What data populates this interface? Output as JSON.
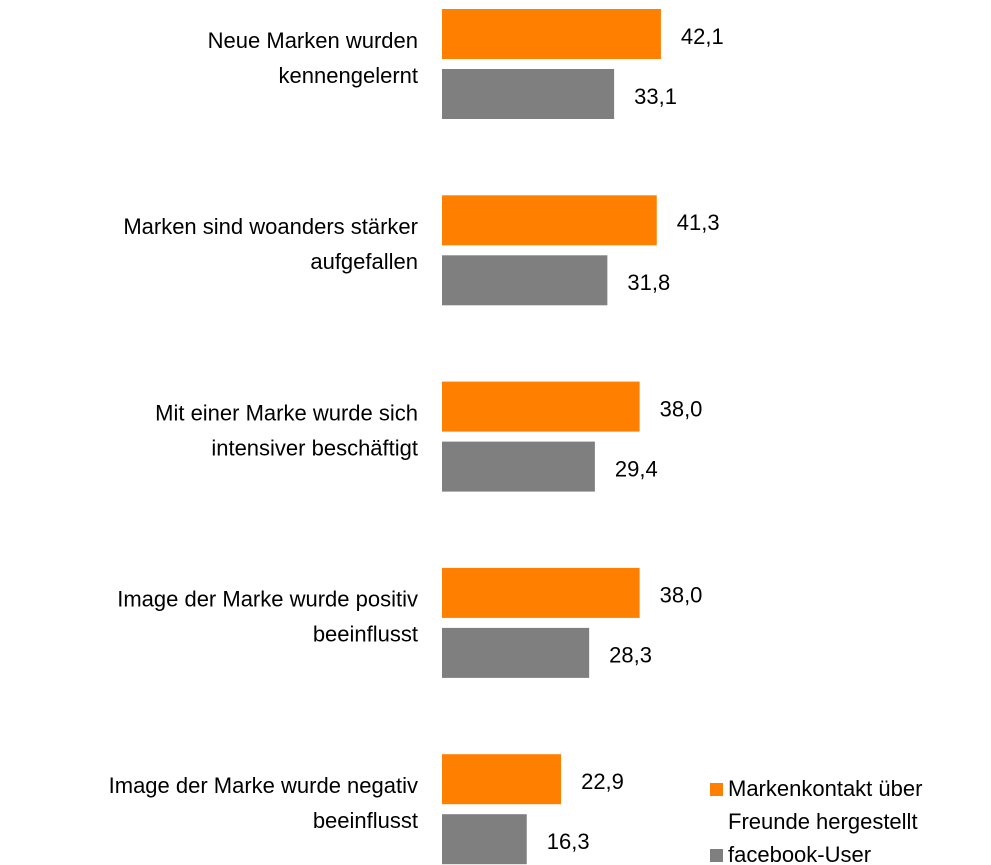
{
  "chart_data": {
    "type": "bar",
    "orientation": "horizontal",
    "categories": [
      [
        "Neue Marken wurden",
        "kennengelernt"
      ],
      [
        "Marken sind woanders stärker",
        "aufgefallen"
      ],
      [
        "Mit einer Marke wurde sich",
        "intensiver beschäftigt"
      ],
      [
        "Image der Marke wurde positiv",
        "beeinflusst"
      ],
      [
        "Image der Marke wurde negativ",
        "beeinflusst"
      ]
    ],
    "series": [
      {
        "name": [
          "Markenkontakt über",
          "Freunde hergestellt"
        ],
        "color": "#ff7f00",
        "values": [
          42.1,
          41.3,
          38.0,
          38.0,
          22.9
        ],
        "value_labels": [
          "42,1",
          "41,3",
          "38,0",
          "38,0",
          "22,9"
        ]
      },
      {
        "name": [
          "facebook-User"
        ],
        "color": "#7f7f7f",
        "values": [
          33.1,
          31.8,
          29.4,
          28.3,
          16.3
        ],
        "value_labels": [
          "33,1",
          "31,8",
          "29,4",
          "28,3",
          "16,3"
        ]
      }
    ],
    "legend": "bottom-right"
  }
}
